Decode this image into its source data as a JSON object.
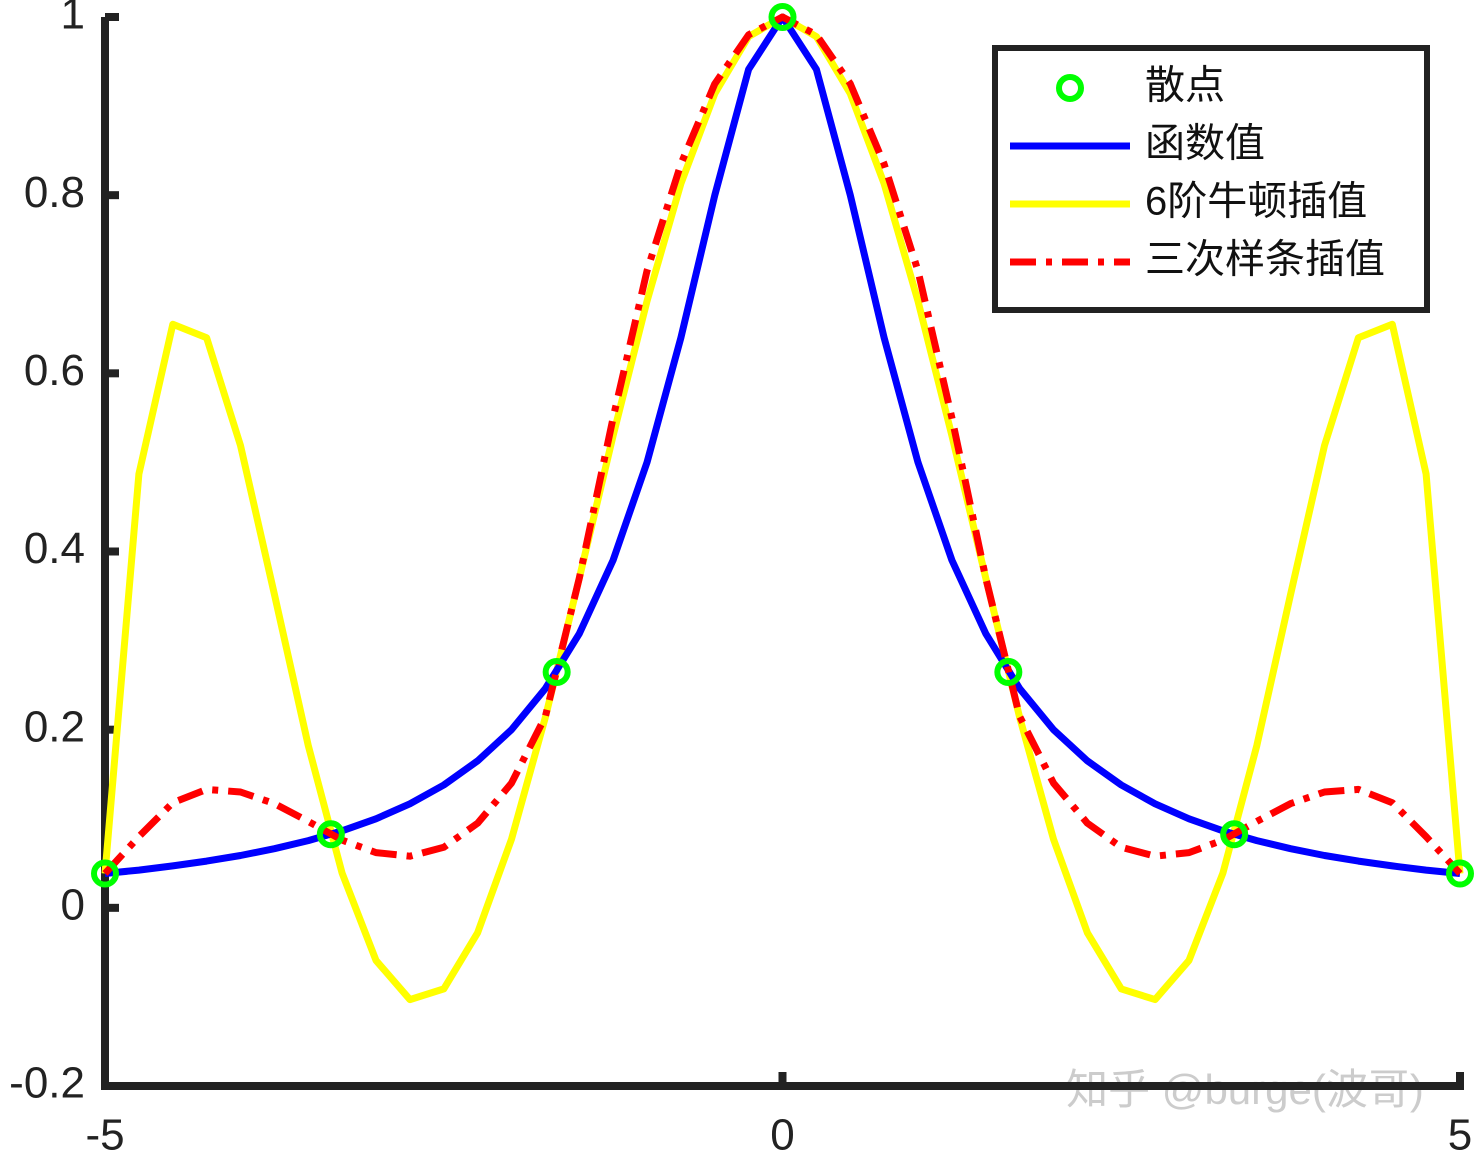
{
  "chart_data": {
    "type": "line",
    "x": [
      -5,
      -4.75,
      -4.5,
      -4.25,
      -4,
      -3.75,
      -3.5,
      -3.25,
      -3,
      -2.75,
      -2.5,
      -2.25,
      -2,
      -1.75,
      -1.5,
      -1.25,
      -1,
      -0.75,
      -0.5,
      -0.25,
      0,
      0.25,
      0.5,
      0.75,
      1,
      1.25,
      1.5,
      1.75,
      2,
      2.25,
      2.5,
      2.75,
      3,
      3.25,
      3.5,
      3.75,
      4,
      4.25,
      4.5,
      4.75,
      5
    ],
    "series": [
      {
        "name": "散点",
        "color": "#00ff00",
        "marker": "o",
        "linestyle": "none",
        "x": [
          -5,
          -3.3333,
          -1.6667,
          0,
          1.6667,
          3.3333,
          5
        ],
        "values": [
          0.0385,
          0.0826,
          0.2647,
          1,
          0.2647,
          0.0826,
          0.0385
        ]
      },
      {
        "name": "函数值",
        "color": "#0000ff",
        "linestyle": "-",
        "values": [
          0.0385,
          0.0424,
          0.0471,
          0.0525,
          0.0588,
          0.0664,
          0.0755,
          0.0865,
          0.1,
          0.1168,
          0.1379,
          0.1649,
          0.2,
          0.2462,
          0.3077,
          0.3902,
          0.5,
          0.64,
          0.8,
          0.9412,
          1,
          0.9412,
          0.8,
          0.64,
          0.5,
          0.3902,
          0.3077,
          0.2462,
          0.2,
          0.1649,
          0.1379,
          0.1168,
          0.1,
          0.0865,
          0.0755,
          0.0664,
          0.0588,
          0.0525,
          0.0471,
          0.0424,
          0.0385
        ]
      },
      {
        "name": "6阶牛顿插值",
        "color": "#ffff00",
        "linestyle": "-",
        "values": [
          0.0385,
          0.487,
          0.655,
          0.64,
          0.519,
          0.352,
          0.182,
          0.039,
          -0.059,
          -0.103,
          -0.091,
          -0.028,
          0.077,
          0.214,
          0.37,
          0.53,
          0.681,
          0.813,
          0.914,
          0.978,
          1,
          0.978,
          0.914,
          0.813,
          0.681,
          0.53,
          0.37,
          0.214,
          0.077,
          -0.028,
          -0.091,
          -0.103,
          -0.059,
          0.039,
          0.182,
          0.352,
          0.519,
          0.64,
          0.655,
          0.487,
          0.0385
        ]
      },
      {
        "name": "三次样条插值",
        "color": "#ff0000",
        "linestyle": "-.",
        "values": [
          0.0385,
          0.08,
          0.118,
          0.133,
          0.13,
          0.117,
          0.097,
          0.076,
          0.062,
          0.058,
          0.068,
          0.095,
          0.14,
          0.215,
          0.37,
          0.55,
          0.715,
          0.835,
          0.925,
          0.98,
          1,
          0.98,
          0.925,
          0.835,
          0.715,
          0.55,
          0.37,
          0.215,
          0.14,
          0.095,
          0.068,
          0.058,
          0.062,
          0.076,
          0.097,
          0.117,
          0.13,
          0.133,
          0.118,
          0.08,
          0.0385
        ]
      }
    ],
    "xlim": [
      -5,
      5
    ],
    "ylim": [
      -0.2,
      1
    ],
    "xticks": [
      -5,
      0,
      5
    ],
    "yticks": [
      -0.2,
      0,
      0.2,
      0.4,
      0.6,
      0.8,
      1
    ],
    "legend": "upper right",
    "watermark": "知乎 @burge(波哥)"
  }
}
